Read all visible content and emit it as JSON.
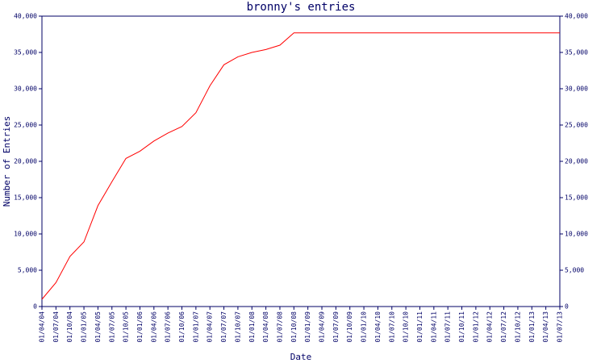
{
  "chart_data": {
    "type": "line",
    "title": "bronny's entries",
    "x_label": "Date",
    "y_label": "Number of Entries",
    "categories": [
      "01/04/04",
      "01/07/04",
      "01/10/04",
      "01/01/05",
      "01/04/05",
      "01/07/05",
      "01/10/05",
      "01/01/06",
      "01/04/06",
      "01/07/06",
      "01/10/06",
      "01/01/07",
      "01/04/07",
      "01/07/07",
      "01/10/07",
      "01/01/08",
      "01/04/08",
      "01/07/08",
      "01/10/08",
      "01/01/09",
      "01/04/09",
      "01/07/09",
      "01/10/09",
      "01/01/10",
      "01/04/10",
      "01/07/10",
      "01/10/10",
      "01/01/11",
      "01/04/11",
      "01/07/11",
      "01/10/11",
      "01/01/12",
      "01/04/12",
      "01/07/12",
      "01/10/12",
      "01/01/13",
      "01/04/13",
      "01/07/13"
    ],
    "series": [
      {
        "name": "bronny",
        "color": "#ff0000",
        "values": [
          1000,
          3300,
          6900,
          8900,
          13900,
          17200,
          20400,
          21400,
          22800,
          23900,
          24800,
          26700,
          30400,
          33300,
          34400,
          35000,
          35400,
          36000,
          37700,
          37700,
          37700,
          37700,
          37700,
          37700,
          37700,
          37700,
          37700,
          37700,
          37700,
          37700,
          37700,
          37700,
          37700,
          37700,
          37700,
          37700,
          37700,
          37700
        ]
      }
    ],
    "ylim": [
      0,
      40000
    ],
    "yticks": [
      0,
      {
        "value": 5000,
        "label": "5,000"
      },
      {
        "value": 10000,
        "label": "10,000"
      },
      {
        "value": 15000,
        "label": "15,000"
      },
      {
        "value": 20000,
        "label": "20,000"
      },
      {
        "value": 25000,
        "label": "25,000"
      },
      {
        "value": 30000,
        "label": "30,000"
      },
      {
        "value": 35000,
        "label": "35,000"
      },
      {
        "value": 40000,
        "label": "40,000"
      }
    ],
    "axis_color": "#000066"
  }
}
